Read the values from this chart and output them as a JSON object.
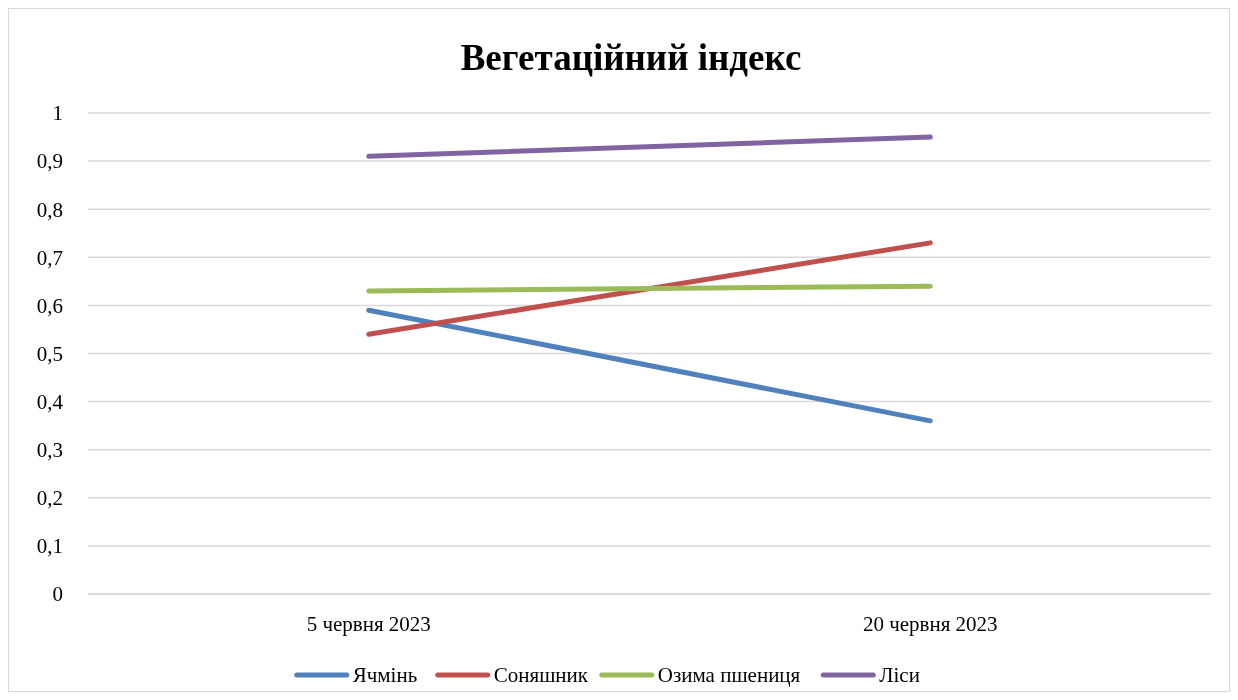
{
  "chart_data": {
    "type": "line",
    "title": "Вегетаційний індекс",
    "categories": [
      "5 червня 2023",
      "20 червня 2023"
    ],
    "series": [
      {
        "name": "Ячмінь",
        "color": "#4f81bd",
        "values": [
          0.59,
          0.36
        ]
      },
      {
        "name": "Соняшник",
        "color": "#c0504d",
        "values": [
          0.54,
          0.73
        ]
      },
      {
        "name": "Озима пшениця",
        "color": "#9bbb59",
        "values": [
          0.63,
          0.64
        ]
      },
      {
        "name": "Ліси",
        "color": "#8064a2",
        "values": [
          0.91,
          0.95
        ]
      }
    ],
    "ylim": [
      0,
      1
    ],
    "yticks": [
      "0",
      {
        "value": 0.1,
        "label": "0,1"
      },
      {
        "value": 0.2,
        "label": "0,2"
      },
      {
        "value": 0.3,
        "label": "0,3"
      },
      {
        "value": 0.4,
        "label": "0,4"
      },
      {
        "value": 0.5,
        "label": "0,5"
      },
      {
        "value": 0.6,
        "label": "0,6"
      },
      {
        "value": 0.7,
        "label": "0,7"
      },
      {
        "value": 0.8,
        "label": "0,8"
      },
      {
        "value": 0.9,
        "label": "0,9"
      },
      1
    ],
    "grid": "y",
    "legend": "bottom",
    "line_style": "solid"
  }
}
